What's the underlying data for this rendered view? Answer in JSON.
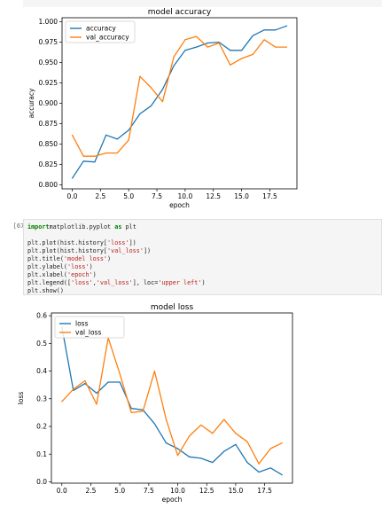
{
  "cell": {
    "prompt": "[672]:",
    "lines": [
      [
        [
          "kw",
          "import"
        ],
        [
          "",
          "matplotlib.pyplot "
        ],
        [
          "kw",
          "as"
        ],
        [
          "",
          " plt"
        ]
      ],
      [],
      [
        [
          "",
          "plt.plot(hist.history["
        ],
        [
          "str",
          "'loss'"
        ],
        [
          "",
          "])"
        ]
      ],
      [
        [
          "",
          "plt.plot(hist.history["
        ],
        [
          "str",
          "'val_loss'"
        ],
        [
          "",
          "])"
        ]
      ],
      [
        [
          "",
          "plt.title("
        ],
        [
          "str",
          "'model loss'"
        ],
        [
          "",
          ")"
        ]
      ],
      [
        [
          "",
          "plt.ylabel("
        ],
        [
          "str",
          "'loss'"
        ],
        [
          "",
          ")"
        ]
      ],
      [
        [
          "",
          "plt.xlabel("
        ],
        [
          "str",
          "'epoch'"
        ],
        [
          "",
          ")"
        ]
      ],
      [
        [
          "",
          "plt.legend(["
        ],
        [
          "str",
          "'loss'"
        ],
        [
          "",
          ","
        ],
        [
          "str",
          "'val_loss'"
        ],
        [
          "",
          "], loc="
        ],
        [
          "str",
          "'upper left'"
        ],
        [
          "",
          ")"
        ]
      ],
      [
        [
          "",
          "plt.show()"
        ]
      ]
    ]
  },
  "chart_data": [
    {
      "type": "line",
      "title": "model accuracy",
      "xlabel": "epoch",
      "ylabel": "accuracy",
      "xlim": [
        -0.9,
        19.9
      ],
      "ylim": [
        0.795,
        1.005
      ],
      "xticks": [
        0.0,
        2.5,
        5.0,
        7.5,
        10.0,
        12.5,
        15.0,
        17.5
      ],
      "xtick_labels": [
        "0.0",
        "2.5",
        "5.0",
        "7.5",
        "10.0",
        "12.5",
        "15.0",
        "17.5"
      ],
      "yticks": [
        0.8,
        0.825,
        0.85,
        0.875,
        0.9,
        0.925,
        0.95,
        0.975,
        1.0
      ],
      "ytick_labels": [
        "0.800",
        "0.825",
        "0.850",
        "0.875",
        "0.900",
        "0.925",
        "0.950",
        "0.975",
        "1.000"
      ],
      "legend_loc": "upper-left",
      "x": [
        0,
        1,
        2,
        3,
        4,
        5,
        6,
        7,
        8,
        9,
        10,
        11,
        12,
        13,
        14,
        15,
        16,
        17,
        18,
        19
      ],
      "series": [
        {
          "name": "accuracy",
          "color": "#1f77b4",
          "values": [
            0.808,
            0.829,
            0.828,
            0.861,
            0.856,
            0.867,
            0.887,
            0.897,
            0.917,
            0.946,
            0.965,
            0.969,
            0.974,
            0.975,
            0.965,
            0.965,
            0.983,
            0.99,
            0.99,
            0.995
          ]
        },
        {
          "name": "val_accuracy",
          "color": "#ff7f0e",
          "values": [
            0.861,
            0.835,
            0.835,
            0.839,
            0.839,
            0.855,
            0.933,
            0.919,
            0.902,
            0.957,
            0.978,
            0.982,
            0.969,
            0.974,
            0.947,
            0.955,
            0.96,
            0.978,
            0.969,
            0.969
          ]
        }
      ]
    },
    {
      "type": "line",
      "title": "model loss",
      "xlabel": "epoch",
      "ylabel": "loss",
      "xlim": [
        -0.9,
        19.9
      ],
      "ylim": [
        -0.005,
        0.61
      ],
      "xticks": [
        0.0,
        2.5,
        5.0,
        7.5,
        10.0,
        12.5,
        15.0,
        17.5
      ],
      "xtick_labels": [
        "0.0",
        "2.5",
        "5.0",
        "7.5",
        "10.0",
        "12.5",
        "15.0",
        "17.5"
      ],
      "yticks": [
        0.0,
        0.1,
        0.2,
        0.3,
        0.4,
        0.5,
        0.6
      ],
      "ytick_labels": [
        "0.0",
        "0.1",
        "0.2",
        "0.3",
        "0.4",
        "0.5",
        "0.6"
      ],
      "legend_loc": "upper-left",
      "x": [
        0,
        1,
        2,
        3,
        4,
        5,
        6,
        7,
        8,
        9,
        10,
        11,
        12,
        13,
        14,
        15,
        16,
        17,
        18,
        19
      ],
      "series": [
        {
          "name": "loss",
          "color": "#1f77b4",
          "values": [
            0.56,
            0.33,
            0.355,
            0.32,
            0.36,
            0.36,
            0.265,
            0.26,
            0.21,
            0.14,
            0.12,
            0.09,
            0.085,
            0.07,
            0.11,
            0.135,
            0.07,
            0.035,
            0.05,
            0.025
          ]
        },
        {
          "name": "val_loss",
          "color": "#ff7f0e",
          "values": [
            0.29,
            0.335,
            0.365,
            0.28,
            0.52,
            0.39,
            0.25,
            0.255,
            0.4,
            0.225,
            0.095,
            0.165,
            0.205,
            0.175,
            0.225,
            0.175,
            0.145,
            0.065,
            0.12,
            0.14
          ]
        }
      ]
    }
  ]
}
